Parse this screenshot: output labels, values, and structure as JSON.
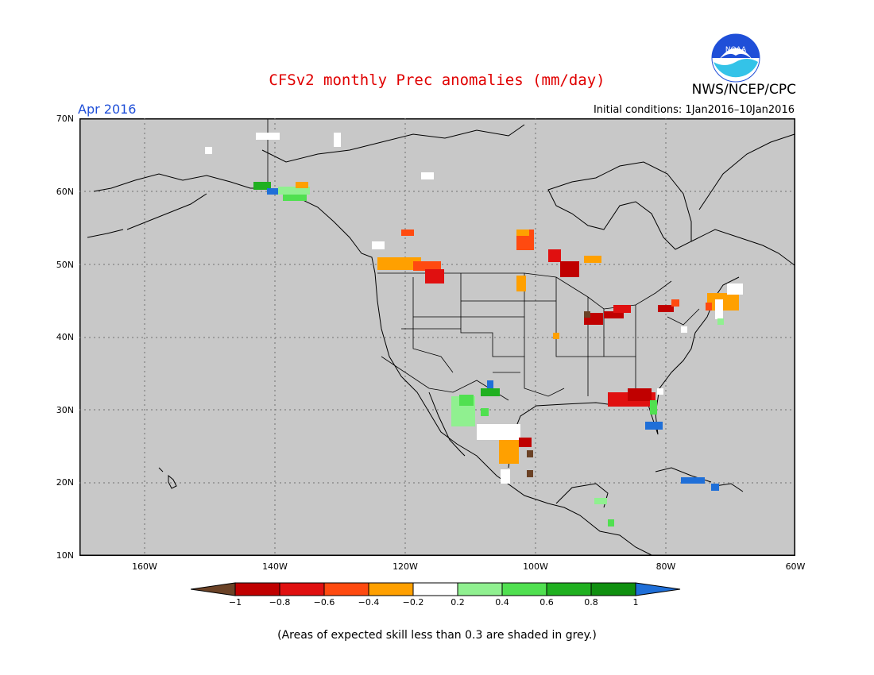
{
  "title": "CFSv2 monthly Prec anomalies (mm/day)",
  "forecast_month": "Apr 2016",
  "initial_conditions": "Initial conditions: 1Jan2016–10Jan2016",
  "agency": "NWS/NCEP/CPC",
  "logo_text": "NOAA",
  "footnote": "(Areas of expected skill less than 0.3 are shaded in grey.)",
  "map": {
    "background": "#c8c8c8",
    "lat_labels": [
      "70N",
      "60N",
      "50N",
      "40N",
      "30N",
      "20N",
      "10N"
    ],
    "lon_labels": [
      "160W",
      "140W",
      "120W",
      "100W",
      "80W",
      "60W"
    ]
  },
  "colorbar": {
    "labels": [
      "−1",
      "−0.8",
      "−0.6",
      "−0.4",
      "−0.2",
      "0.2",
      "0.4",
      "0.6",
      "0.8",
      "1"
    ],
    "colors": [
      "#6b4226",
      "#c00000",
      "#e01010",
      "#ff4a10",
      "#ffa000",
      "#ffffff",
      "#90f090",
      "#50e050",
      "#20b020",
      "#109010",
      "#1f6fd8"
    ]
  },
  "anomaly_patches": [
    {
      "region": "western Canada",
      "color": "#ffa000"
    },
    {
      "region": "Great Lakes",
      "color": "#c00000"
    },
    {
      "region": "southeast US",
      "color": "#c00000"
    },
    {
      "region": "northwest Mexico",
      "color": "#50e050"
    },
    {
      "region": "Florida",
      "color": "#1f6fd8"
    },
    {
      "region": "southern Alaska",
      "color": "#20b020"
    }
  ]
}
